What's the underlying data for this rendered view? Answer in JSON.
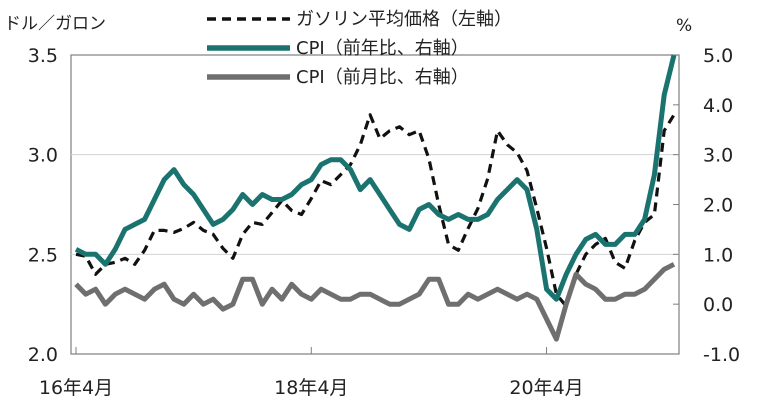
{
  "chart_data": {
    "type": "line",
    "y_left_label": "ドル／ガロン",
    "y_right_label": "%",
    "y_left": {
      "min": 2.0,
      "max": 3.5,
      "ticks": [
        "2.0",
        "2.5",
        "3.0",
        "3.5"
      ]
    },
    "y_right": {
      "min": -1.0,
      "max": 5.0,
      "ticks": [
        "-1.0",
        "0.0",
        "1.0",
        "2.0",
        "3.0",
        "4.0",
        "5.0"
      ]
    },
    "x_ticks": [
      {
        "index": 0,
        "label": "16年4月"
      },
      {
        "index": 24,
        "label": "18年4月"
      },
      {
        "index": 48,
        "label": "20年4月"
      }
    ],
    "x": [
      "2016-04",
      "2016-05",
      "2016-06",
      "2016-07",
      "2016-08",
      "2016-09",
      "2016-10",
      "2016-11",
      "2016-12",
      "2017-01",
      "2017-02",
      "2017-03",
      "2017-04",
      "2017-05",
      "2017-06",
      "2017-07",
      "2017-08",
      "2017-09",
      "2017-10",
      "2017-11",
      "2017-12",
      "2018-01",
      "2018-02",
      "2018-03",
      "2018-04",
      "2018-05",
      "2018-06",
      "2018-07",
      "2018-08",
      "2018-09",
      "2018-10",
      "2018-11",
      "2018-12",
      "2019-01",
      "2019-02",
      "2019-03",
      "2019-04",
      "2019-05",
      "2019-06",
      "2019-07",
      "2019-08",
      "2019-09",
      "2019-10",
      "2019-11",
      "2019-12",
      "2020-01",
      "2020-02",
      "2020-03",
      "2020-04",
      "2020-05",
      "2020-06",
      "2020-07",
      "2020-08",
      "2020-09",
      "2020-10",
      "2020-11",
      "2020-12",
      "2021-01",
      "2021-02",
      "2021-03",
      "2021-04",
      "2021-05"
    ],
    "series": [
      {
        "name": "ガソリン平均価格（左軸）",
        "axis": "left",
        "color": "#111111",
        "style": "dashed",
        "values": [
          2.5,
          2.49,
          2.4,
          2.45,
          2.46,
          2.48,
          2.45,
          2.52,
          2.62,
          2.62,
          2.61,
          2.63,
          2.66,
          2.62,
          2.6,
          2.53,
          2.48,
          2.6,
          2.66,
          2.65,
          2.71,
          2.77,
          2.72,
          2.7,
          2.78,
          2.87,
          2.85,
          2.9,
          2.95,
          3.05,
          3.2,
          3.08,
          3.12,
          3.14,
          3.1,
          3.12,
          2.98,
          2.75,
          2.55,
          2.52,
          2.63,
          2.73,
          2.88,
          3.12,
          3.05,
          3.01,
          2.92,
          2.73,
          2.53,
          2.3,
          2.24,
          2.4,
          2.5,
          2.55,
          2.58,
          2.46,
          2.43,
          2.57,
          2.66,
          2.7,
          3.12,
          3.2
        ]
      },
      {
        "name": "CPI（前年比、右軸）",
        "axis": "right",
        "color": "#1b7370",
        "style": "solid",
        "values": [
          1.1,
          1.0,
          1.0,
          0.8,
          1.1,
          1.5,
          1.6,
          1.7,
          2.1,
          2.5,
          2.7,
          2.4,
          2.2,
          1.9,
          1.6,
          1.7,
          1.9,
          2.2,
          2.0,
          2.2,
          2.1,
          2.1,
          2.2,
          2.4,
          2.5,
          2.8,
          2.9,
          2.9,
          2.7,
          2.3,
          2.5,
          2.2,
          1.9,
          1.6,
          1.5,
          1.9,
          2.0,
          1.8,
          1.7,
          1.8,
          1.7,
          1.7,
          1.8,
          2.1,
          2.3,
          2.5,
          2.3,
          1.5,
          0.3,
          0.1,
          0.6,
          1.0,
          1.3,
          1.4,
          1.2,
          1.2,
          1.4,
          1.4,
          1.7,
          2.6,
          4.2,
          5.0
        ]
      },
      {
        "name": "CPI（前月比、右軸）",
        "axis": "right",
        "color": "#6f6f6f",
        "style": "solid",
        "values": [
          0.4,
          0.2,
          0.3,
          0.0,
          0.2,
          0.3,
          0.2,
          0.1,
          0.3,
          0.4,
          0.1,
          0.0,
          0.2,
          0.0,
          0.1,
          -0.1,
          0.0,
          0.5,
          0.5,
          0.0,
          0.3,
          0.1,
          0.4,
          0.2,
          0.1,
          0.3,
          0.2,
          0.1,
          0.1,
          0.2,
          0.2,
          0.1,
          0.0,
          0.0,
          0.1,
          0.2,
          0.5,
          0.5,
          0.0,
          0.0,
          0.2,
          0.1,
          0.2,
          0.3,
          0.2,
          0.1,
          0.2,
          0.1,
          -0.3,
          -0.7,
          0.0,
          0.6,
          0.4,
          0.3,
          0.1,
          0.1,
          0.2,
          0.2,
          0.3,
          0.5,
          0.7,
          0.8
        ]
      }
    ]
  }
}
